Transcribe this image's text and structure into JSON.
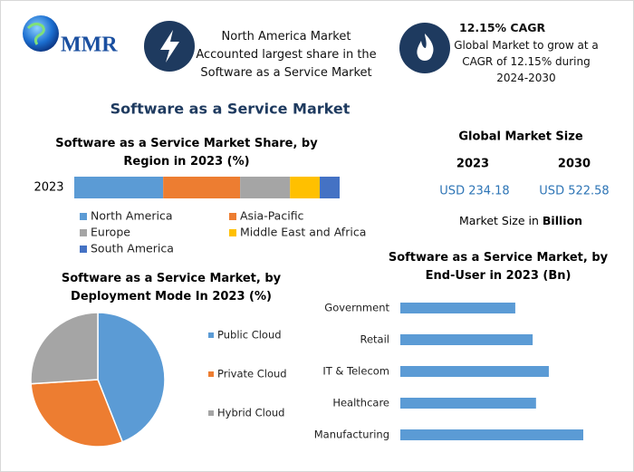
{
  "header": {
    "logo": "MMR",
    "highlight_1": {
      "text": "North America Market Accounted largest share in the Software as a Service Market"
    },
    "highlight_2": {
      "title": "12.15% CAGR",
      "text": "Global Market to grow at a CAGR of 12.15% during 2024-2030"
    }
  },
  "title": "Software as a Service Market",
  "market_size": {
    "title": "Global Market Size",
    "years": [
      "2023",
      "2030"
    ],
    "values": [
      "USD 234.18",
      "USD 522.58"
    ],
    "note_prefix": "Market Size in",
    "note_bold": "Billion"
  },
  "chart_data": [
    {
      "type": "stacked-bar",
      "title": "Software as a Service Market Share, by Region in 2023 (%)",
      "categories": [
        "2023"
      ],
      "series": [
        {
          "name": "North America",
          "color": "#5b9bd5",
          "values": [
            33.5
          ]
        },
        {
          "name": "Asia-Pacific",
          "color": "#ed7d31",
          "values": [
            29
          ]
        },
        {
          "name": "Europe",
          "color": "#a5a5a5",
          "values": [
            18.8
          ]
        },
        {
          "name": "Middle East and Africa",
          "color": "#ffc000",
          "values": [
            11.2
          ]
        },
        {
          "name": "South America",
          "color": "#4472c4",
          "values": [
            7.5
          ]
        }
      ],
      "legend": "bottom"
    },
    {
      "type": "pie",
      "title": "Software as a Service Market, by Deployment Mode In 2023 (%)",
      "categories": [
        "Public Cloud",
        "Private Cloud",
        "Hybrid Cloud"
      ],
      "values": [
        44,
        30,
        26
      ],
      "colors": [
        "#5b9bd5",
        "#ed7d31",
        "#a5a5a5"
      ],
      "legend": "right"
    },
    {
      "type": "hbar",
      "title": "Software as a Service Market, by End-User in 2023 (Bn)",
      "categories": [
        "Government",
        "Retail",
        "IT & Telecom",
        "Healthcare",
        "Manufacturing"
      ],
      "values": [
        37.7,
        43.4,
        48.7,
        44.5,
        60.0
      ],
      "color": "#5b9bd5"
    }
  ]
}
